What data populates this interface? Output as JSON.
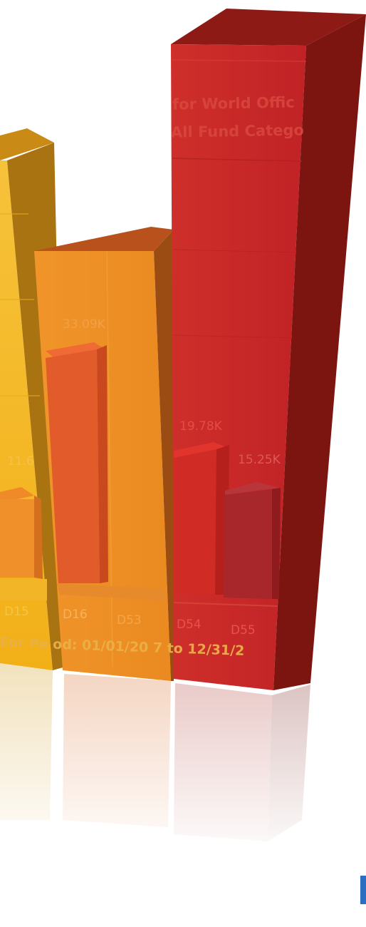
{
  "overlay": {
    "title_line1": "for World Offic",
    "title_line2": "All Fund Catego",
    "period": "For Pe od: 01/01/20 7 to 12/31/2",
    "inner_values": [
      "11.6",
      "33.09K",
      "19.78K",
      "15.25K"
    ],
    "category_codes": [
      "D15",
      "D16",
      "D53",
      "D54",
      "D55"
    ]
  },
  "colors": {
    "yellow": "#f0b323",
    "orange": "#ee8c23",
    "red": "#c8262a",
    "corner_mark": "#2a6fc0"
  },
  "icons": {
    "corner_mark": "blue-bar-icon"
  }
}
